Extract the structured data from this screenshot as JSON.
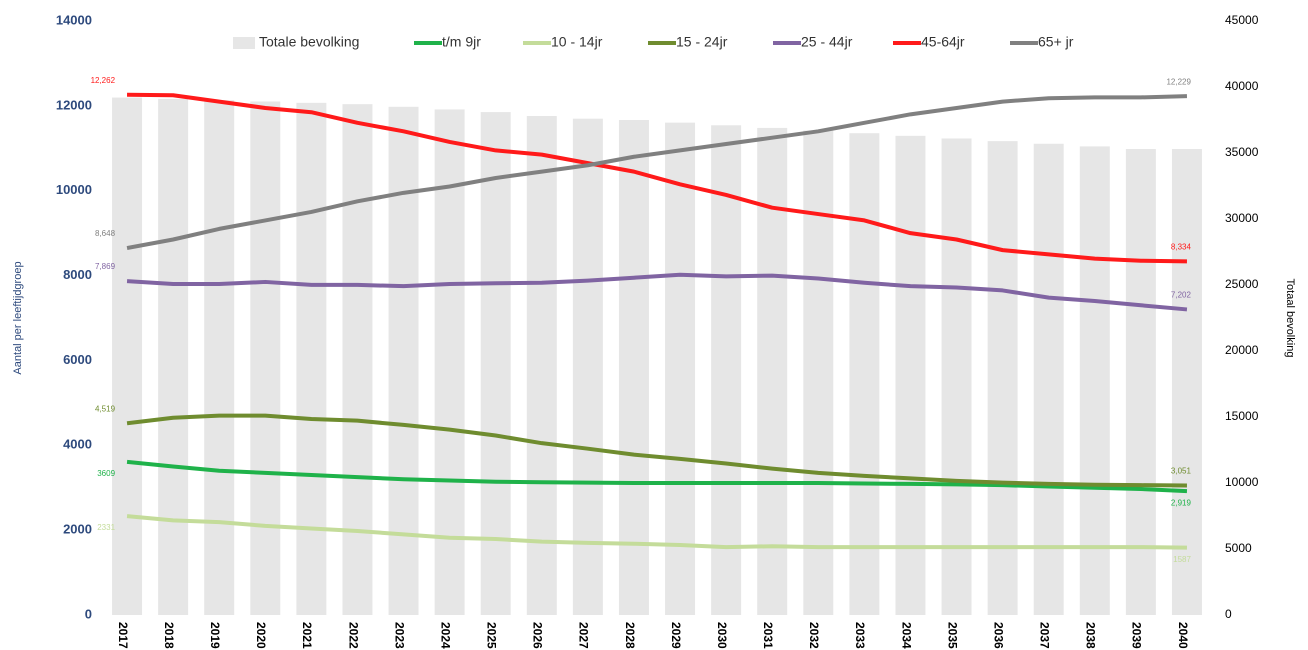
{
  "chart_data": {
    "type": "bar-line",
    "categories": [
      "2017",
      "2018",
      "2019",
      "2020",
      "2021",
      "2022",
      "2023",
      "2024",
      "2025",
      "2026",
      "2027",
      "2028",
      "2029",
      "2030",
      "2031",
      "2032",
      "2033",
      "2034",
      "2035",
      "2036",
      "2037",
      "2038",
      "2039",
      "2040"
    ],
    "ylabel": "Aantal per leeftijdgroep",
    "y2label": "Totaal bevolking",
    "ylim": [
      0,
      14000
    ],
    "yticks": [
      0,
      2000,
      4000,
      6000,
      8000,
      10000,
      12000,
      14000
    ],
    "y2lim": [
      0,
      45000
    ],
    "y2ticks": [
      0,
      5000,
      10000,
      15000,
      20000,
      25000,
      30000,
      35000,
      40000,
      45000
    ],
    "legend": "top",
    "series": [
      {
        "name": "Totale bevolking",
        "type": "bar",
        "axis": "y2",
        "color": "#e6e6e6",
        "values": [
          39200,
          39100,
          39000,
          38900,
          38800,
          38700,
          38500,
          38300,
          38100,
          37800,
          37600,
          37500,
          37300,
          37100,
          36900,
          36700,
          36500,
          36300,
          36100,
          35900,
          35700,
          35500,
          35300,
          35300
        ]
      },
      {
        "name": "t/m 9jr",
        "type": "line",
        "color": "#1fb24a",
        "values": [
          3609,
          3500,
          3400,
          3350,
          3300,
          3250,
          3200,
          3170,
          3140,
          3130,
          3120,
          3110,
          3110,
          3110,
          3110,
          3110,
          3100,
          3090,
          3080,
          3060,
          3030,
          3000,
          2970,
          2919
        ],
        "value_labels": [
          "3609",
          null,
          null,
          null,
          null,
          null,
          null,
          null,
          null,
          null,
          null,
          null,
          null,
          null,
          null,
          null,
          null,
          null,
          null,
          null,
          null,
          null,
          null,
          "2,919"
        ]
      },
      {
        "name": "10 - 14jr",
        "type": "line",
        "color": "#c4dc9a",
        "values": [
          2331,
          2230,
          2190,
          2100,
          2040,
          1980,
          1900,
          1820,
          1790,
          1730,
          1700,
          1680,
          1650,
          1600,
          1620,
          1600,
          1600,
          1600,
          1600,
          1600,
          1600,
          1600,
          1600,
          1587
        ],
        "value_labels": [
          "2331",
          null,
          null,
          null,
          null,
          null,
          null,
          null,
          null,
          null,
          null,
          null,
          null,
          null,
          null,
          null,
          null,
          null,
          null,
          null,
          null,
          null,
          null,
          "1587"
        ]
      },
      {
        "name": "15 - 24jr",
        "type": "line",
        "color": "#6f8c2f",
        "values": [
          4519,
          4650,
          4700,
          4700,
          4620,
          4580,
          4480,
          4370,
          4230,
          4050,
          3920,
          3780,
          3680,
          3570,
          3450,
          3350,
          3280,
          3220,
          3160,
          3120,
          3090,
          3070,
          3060,
          3051
        ],
        "value_labels": [
          "4,519",
          null,
          null,
          null,
          null,
          null,
          null,
          null,
          null,
          null,
          null,
          null,
          null,
          null,
          null,
          null,
          null,
          null,
          null,
          null,
          null,
          null,
          null,
          "3,051"
        ]
      },
      {
        "name": "25 - 44jr",
        "type": "line",
        "color": "#8064a2",
        "values": [
          7869,
          7800,
          7800,
          7850,
          7780,
          7780,
          7750,
          7800,
          7820,
          7830,
          7880,
          7950,
          8020,
          7980,
          8000,
          7930,
          7830,
          7750,
          7720,
          7650,
          7480,
          7400,
          7300,
          7202
        ],
        "value_labels": [
          "7,869",
          null,
          null,
          null,
          null,
          null,
          null,
          null,
          null,
          null,
          null,
          null,
          null,
          null,
          null,
          null,
          null,
          null,
          null,
          null,
          null,
          null,
          null,
          "7,202"
        ]
      },
      {
        "name": "45-64jr",
        "type": "line",
        "color": "#ff1a1a",
        "values": [
          12262,
          12250,
          12100,
          11950,
          11850,
          11600,
          11400,
          11150,
          10950,
          10850,
          10650,
          10450,
          10150,
          9900,
          9600,
          9450,
          9300,
          9000,
          8850,
          8600,
          8500,
          8400,
          8350,
          8334
        ],
        "value_labels": [
          "12,262",
          null,
          null,
          null,
          null,
          null,
          null,
          null,
          null,
          null,
          null,
          null,
          null,
          null,
          null,
          null,
          null,
          null,
          null,
          null,
          null,
          null,
          null,
          "8,334"
        ]
      },
      {
        "name": "65+ jr",
        "type": "line",
        "color": "#808080",
        "values": [
          8648,
          8850,
          9100,
          9300,
          9500,
          9750,
          9950,
          10100,
          10300,
          10450,
          10600,
          10800,
          10950,
          11100,
          11250,
          11400,
          11600,
          11800,
          11950,
          12100,
          12180,
          12200,
          12200,
          12229
        ],
        "value_labels": [
          "8,648",
          null,
          null,
          null,
          null,
          null,
          null,
          null,
          null,
          null,
          null,
          null,
          null,
          null,
          null,
          null,
          null,
          null,
          null,
          null,
          null,
          null,
          null,
          "12,229"
        ]
      }
    ]
  }
}
